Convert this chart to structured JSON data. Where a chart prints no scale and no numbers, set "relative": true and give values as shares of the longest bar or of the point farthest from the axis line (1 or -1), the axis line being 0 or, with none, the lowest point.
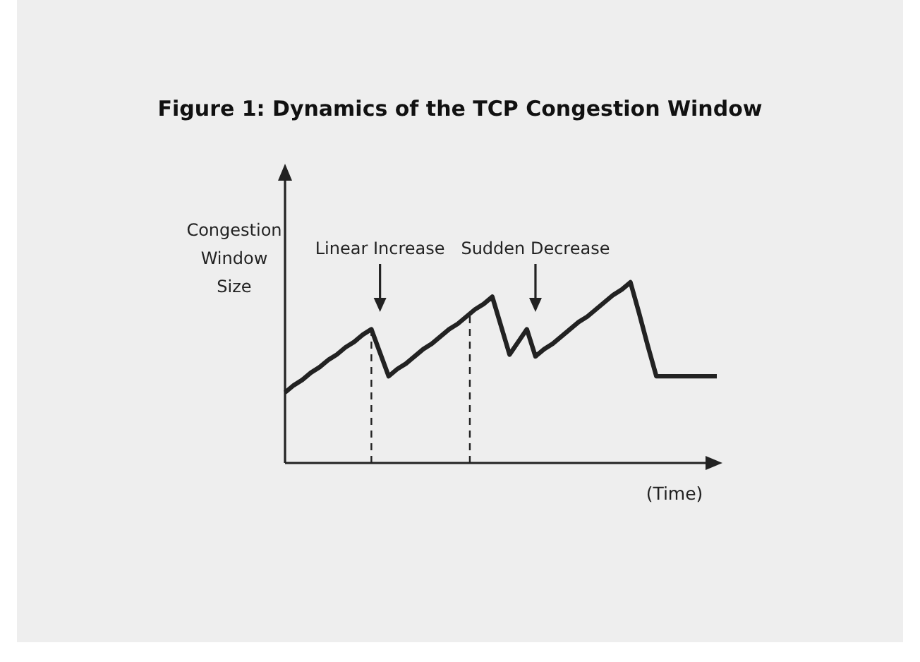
{
  "chart_data": {
    "type": "line",
    "title": "Figure 1: Dynamics of the TCP Congestion Window",
    "ylabel": "Congestion Window Size",
    "xlabel": "(Time)",
    "relative": true,
    "marker": "none",
    "line_style": "solid",
    "categories": [
      null,
      null,
      null,
      null,
      null,
      null,
      null,
      null,
      null,
      null,
      null,
      null,
      null,
      null,
      null,
      null,
      null,
      null,
      null,
      null,
      null,
      null,
      null,
      null,
      null,
      null,
      null,
      null,
      null,
      null,
      null,
      null,
      null,
      null,
      null,
      null,
      null,
      null,
      null,
      null,
      null,
      null,
      null,
      null,
      null,
      null,
      null,
      null,
      null,
      null,
      null
    ],
    "series": [
      {
        "color": "#222222",
        "values": [
          0.39,
          0.43,
          0.46,
          0.5,
          0.53,
          0.57,
          0.6,
          0.64,
          0.67,
          0.71,
          0.74,
          0.61,
          0.48,
          0.52,
          0.55,
          0.59,
          0.63,
          0.66,
          0.7,
          0.74,
          0.77,
          0.81,
          0.85,
          0.88,
          0.92,
          0.76,
          0.6,
          0.67,
          0.74,
          0.59,
          0.63,
          0.66,
          0.7,
          0.74,
          0.78,
          0.81,
          0.85,
          0.89,
          0.93,
          0.96,
          1,
          0.83,
          0.65,
          0.48,
          0.48,
          0.48,
          0.48,
          0.48,
          0.48,
          0.48,
          0.48
        ]
      }
    ],
    "annotations": [
      {
        "text": "Linear Increase"
      },
      {
        "text": "Sudden Decrease"
      }
    ]
  }
}
